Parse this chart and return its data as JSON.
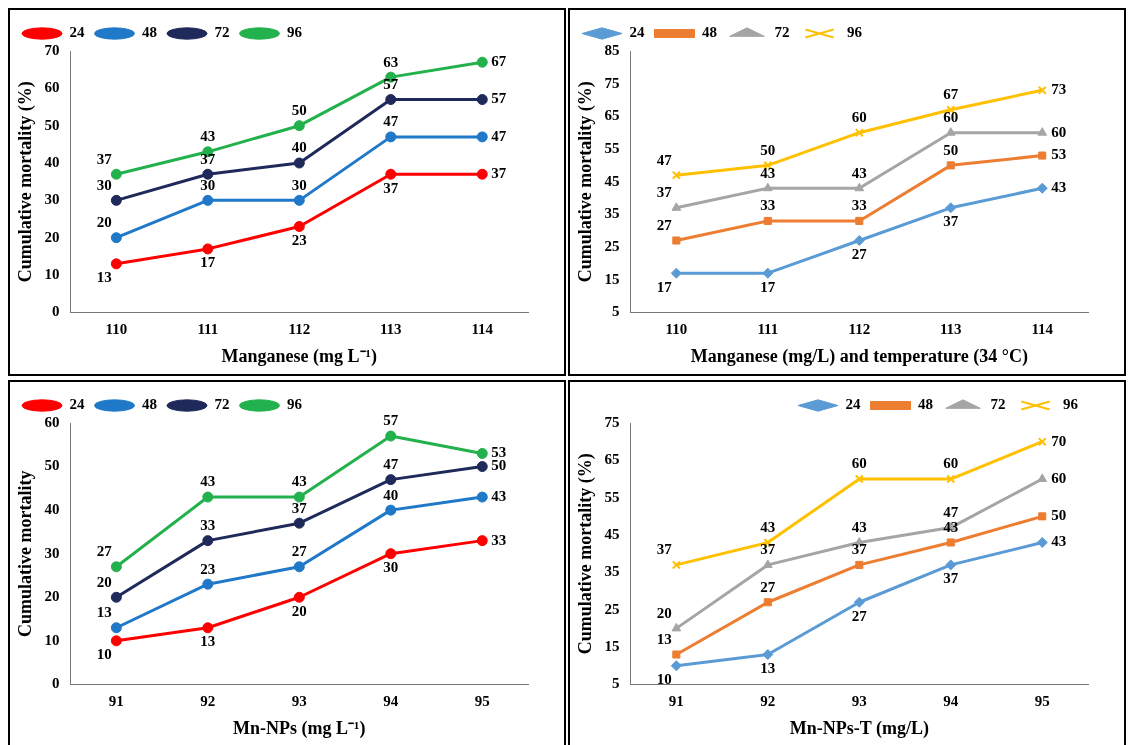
{
  "chart_data": [
    {
      "type": "line",
      "xlabel": "Manganese (mg L⁻¹)",
      "ylabel": "Cumulative mortality (%)",
      "categories": [
        "110",
        "111",
        "112",
        "113",
        "114"
      ],
      "ylim": [
        0,
        70
      ],
      "yticks": [
        0,
        10,
        20,
        30,
        40,
        50,
        60,
        70
      ],
      "grid": false,
      "legend": "top left",
      "marker": "circle",
      "data_labels": true,
      "series": [
        {
          "name": "24",
          "color": "#ff0000",
          "values": [
            13,
            17,
            23,
            37,
            37
          ]
        },
        {
          "name": "48",
          "color": "#1f78c8",
          "values": [
            20,
            30,
            30,
            47,
            47
          ]
        },
        {
          "name": "72",
          "color": "#1f2a5a",
          "values": [
            30,
            37,
            40,
            57,
            57
          ]
        },
        {
          "name": "96",
          "color": "#22b14c",
          "values": [
            37,
            43,
            50,
            63,
            67
          ]
        }
      ]
    },
    {
      "type": "line",
      "xlabel": "Manganese (mg/L) and temperature (34 °C)",
      "ylabel": "Cumulative mortality (%)",
      "categories": [
        "110",
        "111",
        "112",
        "113",
        "114"
      ],
      "ylim": [
        5,
        85
      ],
      "yticks": [
        5,
        15,
        25,
        35,
        45,
        55,
        65,
        75,
        85
      ],
      "grid": false,
      "legend": "top left",
      "data_labels": true,
      "series": [
        {
          "name": "24",
          "color": "#5b9bd5",
          "marker": "diamond",
          "values": [
            17,
            17,
            27,
            37,
            43
          ]
        },
        {
          "name": "48",
          "color": "#ed7d31",
          "marker": "square",
          "values": [
            27,
            33,
            33,
            50,
            53
          ]
        },
        {
          "name": "72",
          "color": "#a5a5a5",
          "marker": "triangle",
          "values": [
            37,
            43,
            43,
            60,
            60
          ]
        },
        {
          "name": "96",
          "color": "#ffc000",
          "marker": "cross",
          "values": [
            47,
            50,
            60,
            67,
            73
          ]
        }
      ]
    },
    {
      "type": "line",
      "xlabel": "Mn-NPs (mg L⁻¹)",
      "ylabel": "Cumulative mortality",
      "categories": [
        "91",
        "92",
        "93",
        "94",
        "95"
      ],
      "ylim": [
        0,
        60
      ],
      "yticks": [
        0,
        10,
        20,
        30,
        40,
        50,
        60
      ],
      "grid": false,
      "legend": "top left",
      "marker": "circle",
      "data_labels": true,
      "series": [
        {
          "name": "24",
          "color": "#ff0000",
          "values": [
            10,
            13,
            20,
            30,
            33
          ]
        },
        {
          "name": "48",
          "color": "#1f78c8",
          "values": [
            13,
            23,
            27,
            40,
            43
          ]
        },
        {
          "name": "72",
          "color": "#1f2a5a",
          "values": [
            20,
            33,
            37,
            47,
            50
          ]
        },
        {
          "name": "96",
          "color": "#22b14c",
          "values": [
            27,
            43,
            43,
            57,
            53
          ]
        }
      ]
    },
    {
      "type": "line",
      "xlabel": "Mn-NPs-T (mg/L)",
      "ylabel": "Cumulative mortality (%)",
      "categories": [
        "91",
        "92",
        "93",
        "94",
        "95"
      ],
      "ylim": [
        5,
        75
      ],
      "yticks": [
        5,
        15,
        25,
        35,
        45,
        55,
        65,
        75
      ],
      "grid": false,
      "legend": "top right",
      "data_labels": true,
      "series": [
        {
          "name": "24",
          "color": "#5b9bd5",
          "marker": "diamond",
          "values": [
            10,
            13,
            27,
            37,
            43
          ]
        },
        {
          "name": "48",
          "color": "#ed7d31",
          "marker": "square",
          "values": [
            13,
            27,
            37,
            43,
            50
          ]
        },
        {
          "name": "72",
          "color": "#a5a5a5",
          "marker": "triangle",
          "values": [
            20,
            37,
            43,
            47,
            60
          ]
        },
        {
          "name": "96",
          "color": "#ffc000",
          "marker": "cross",
          "values": [
            37,
            43,
            60,
            60,
            70
          ]
        }
      ]
    }
  ]
}
